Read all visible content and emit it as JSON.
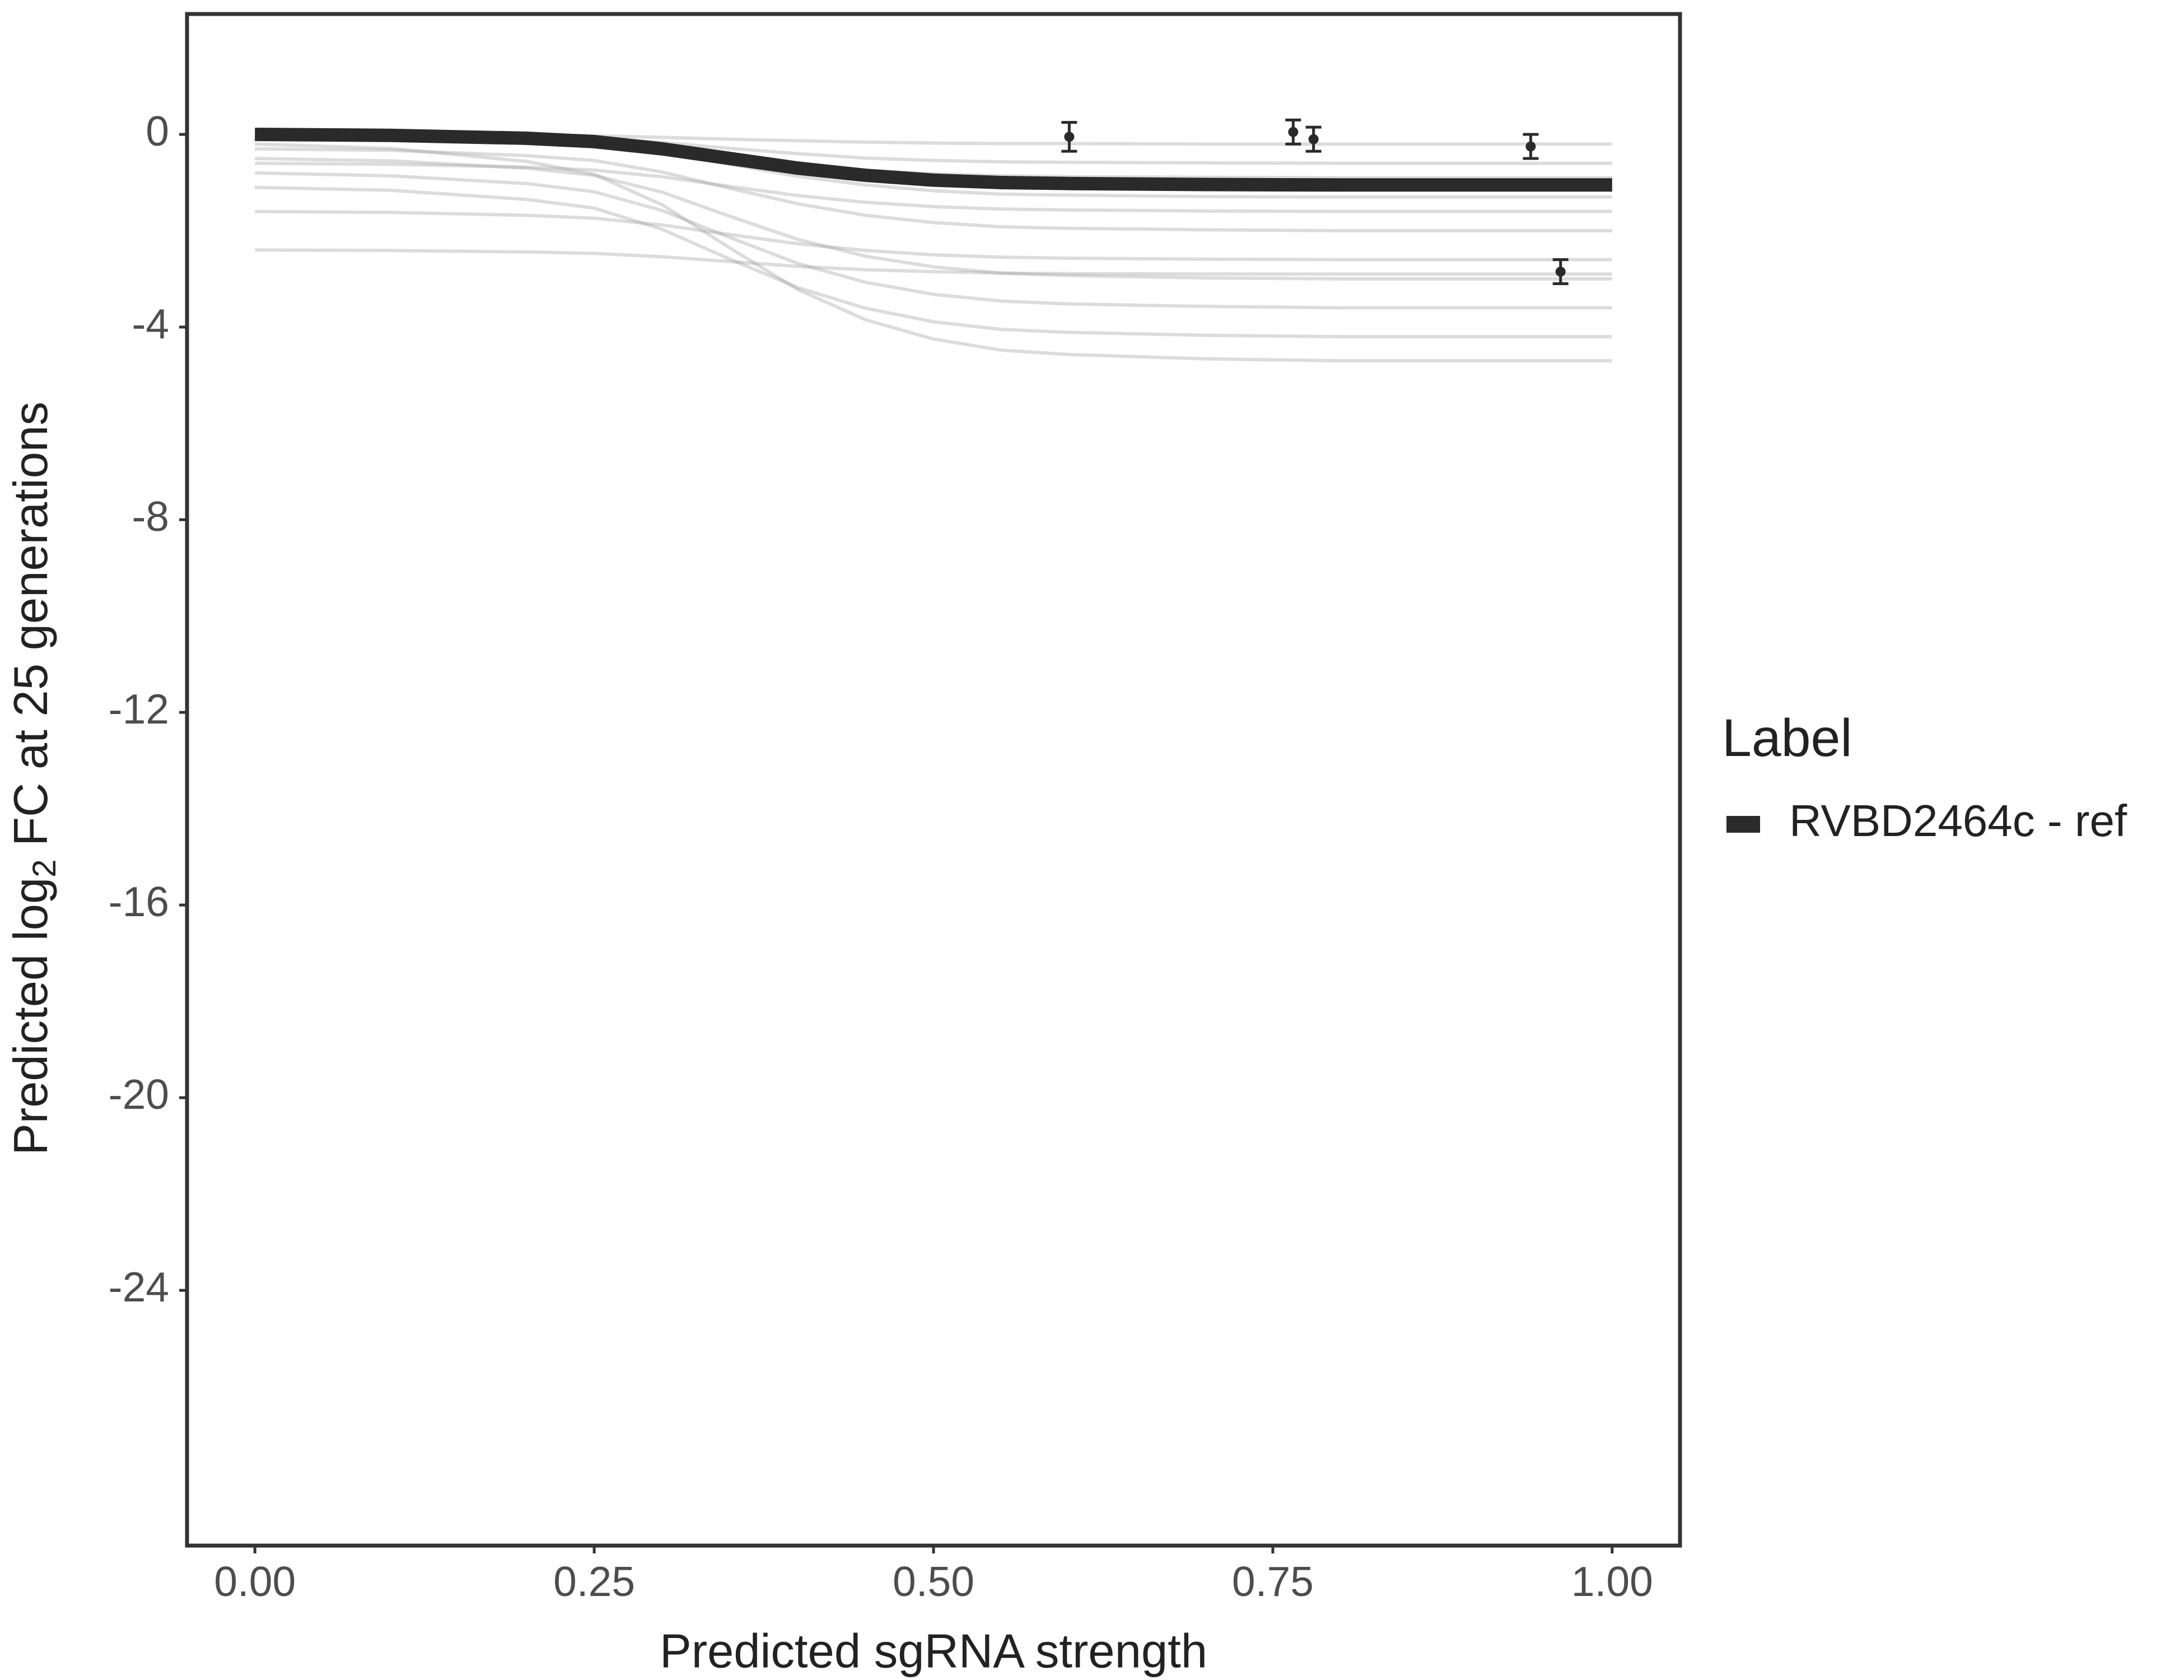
{
  "chart_data": {
    "type": "line",
    "x_label": "Predicted sgRNA strength",
    "y_label": "Predicted  log",
    "y_label_sub": "2",
    "y_label_end": " FC at 25 generations",
    "legend_title": "Label",
    "legend_position": "right",
    "xlim": [
      -0.05,
      1.05
    ],
    "ylim": [
      -29.3,
      2.5
    ],
    "xticks": [
      {
        "value": 0,
        "label": "0.00"
      },
      {
        "value": 0.25,
        "label": "0.25"
      },
      {
        "value": 0.5,
        "label": "0.50"
      },
      {
        "value": 0.75,
        "label": "0.75"
      },
      {
        "value": 1,
        "label": "1.00"
      }
    ],
    "yticks": [
      0,
      -4,
      -8,
      -12,
      -16,
      -20,
      -24
    ],
    "x": [
      0,
      0.1,
      0.2,
      0.25,
      0.3,
      0.35,
      0.4,
      0.45,
      0.5,
      0.55,
      0.6,
      0.7,
      0.8,
      0.9,
      1.0
    ],
    "series": [
      {
        "name": "RVBD2464c - ref",
        "color": "#2a2a2a",
        "values": [
          0,
          -0.02,
          -0.08,
          -0.15,
          -0.3,
          -0.5,
          -0.7,
          -0.85,
          -0.95,
          -1.0,
          -1.02,
          -1.04,
          -1.05,
          -1.05,
          -1.05
        ]
      }
    ],
    "draw_color": "#9a9a9a",
    "draws": [
      [
        0,
        -0.03,
        -0.1,
        -0.18,
        -0.36,
        -0.62,
        -0.87,
        -1.05,
        -1.17,
        -1.24,
        -1.26,
        -1.29,
        -1.3,
        -1.3,
        -1.3
      ],
      [
        -0.3,
        -0.33,
        -0.44,
        -0.54,
        -0.78,
        -1.12,
        -1.44,
        -1.68,
        -1.83,
        -1.92,
        -1.95,
        -1.98,
        -2,
        -2,
        -2
      ],
      [
        -0.5,
        -0.55,
        -0.7,
        -0.85,
        -1.2,
        -1.7,
        -2.18,
        -2.53,
        -2.75,
        -2.88,
        -2.93,
        -2.98,
        -3,
        -3,
        -3
      ],
      [
        -0.8,
        -0.86,
        -1.02,
        -1.19,
        -1.58,
        -2.14,
        -2.68,
        -3.07,
        -3.32,
        -3.46,
        -3.52,
        -3.57,
        -3.6,
        -3.6,
        -3.6
      ],
      [
        -0.2,
        -0.29,
        -0.56,
        -0.83,
        -1.46,
        -2.36,
        -3.22,
        -3.85,
        -4.25,
        -4.48,
        -4.57,
        -4.66,
        -4.7,
        -4.7,
        -4.7
      ],
      [
        -1.6,
        -1.62,
        -1.68,
        -1.74,
        -1.88,
        -2.08,
        -2.27,
        -2.41,
        -2.5,
        -2.55,
        -2.57,
        -2.59,
        -2.6,
        -2.6,
        -2.6
      ],
      [
        -2.4,
        -2.41,
        -2.44,
        -2.47,
        -2.54,
        -2.64,
        -2.74,
        -2.81,
        -2.85,
        -2.88,
        -2.89,
        -2.9,
        -2.9,
        -2.9,
        -2.9
      ],
      [
        0,
        -0.01,
        -0.05,
        -0.08,
        -0.17,
        -0.29,
        -0.4,
        -0.49,
        -0.54,
        -0.57,
        -0.58,
        -0.59,
        -0.6,
        -0.6,
        -0.6
      ],
      [
        -0.1,
        -0.12,
        -0.16,
        -0.21,
        -0.32,
        -0.48,
        -0.64,
        -0.75,
        -0.82,
        -0.86,
        -0.88,
        -0.89,
        -0.9,
        -0.9,
        -0.9
      ],
      [
        -1.1,
        -1.16,
        -1.35,
        -1.53,
        -1.97,
        -2.59,
        -3.18,
        -3.61,
        -3.89,
        -4.05,
        -4.11,
        -4.17,
        -4.2,
        -4.2,
        -4.2
      ],
      [
        -0.6,
        -0.62,
        -0.68,
        -0.74,
        -0.88,
        -1.08,
        -1.27,
        -1.41,
        -1.5,
        -1.55,
        -1.57,
        -1.59,
        -1.6,
        -1.6,
        -1.6
      ],
      [
        0,
        0,
        -0.02,
        -0.03,
        -0.06,
        -0.1,
        -0.13,
        -0.16,
        -0.18,
        -0.19,
        -0.19,
        -0.2,
        -0.2,
        -0.2,
        -0.2
      ]
    ],
    "points": {
      "color": "#2a2a2a",
      "x": [
        0.6,
        0.765,
        0.78,
        0.94,
        0.962
      ],
      "values": [
        -0.05,
        0.05,
        -0.1,
        -0.25,
        -2.85
      ],
      "errors": [
        0.3,
        0.25,
        0.25,
        0.25,
        0.25
      ]
    }
  }
}
